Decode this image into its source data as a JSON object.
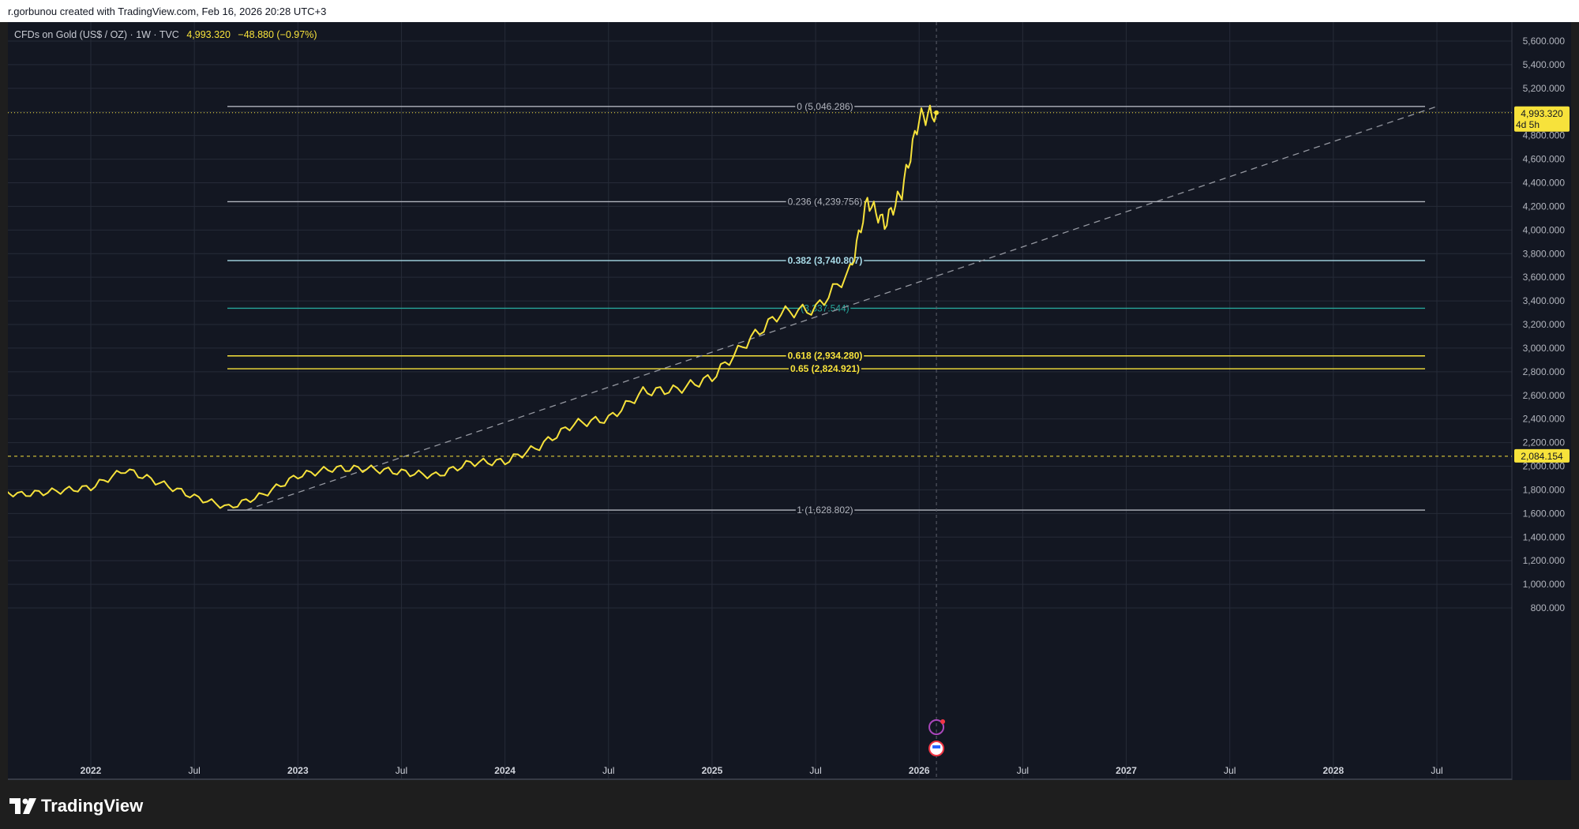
{
  "header": {
    "attribution": "r.gorbunou created with TradingView.com, Feb 16, 2026 20:28 UTC+3"
  },
  "legend": {
    "symbol": "CFDs on Gold (US$ / OZ) · 1W · TVC",
    "price": "4,993.320",
    "change": "−48.880 (−0.97%)"
  },
  "price_badges": {
    "current": "4,993.320",
    "countdown": "4d 5h",
    "line_level": "2,084.154"
  },
  "footer": {
    "logo": "TradingView"
  },
  "colors": {
    "price_line": "#f7e23b",
    "background": "#131722",
    "badge": "#f7e23b",
    "fib_white": "#b2b5be",
    "fib_cyan": "#a8dbe8",
    "fib_teal": "#26a69a",
    "fib_yellow": "#f7e23b"
  },
  "chart_data": {
    "type": "line",
    "ylim": [
      800,
      5600
    ],
    "yticks": [
      "5,600.000",
      "5,400.000",
      "5,200.000",
      "5,000.000",
      "4,800.000",
      "4,600.000",
      "4,400.000",
      "4,200.000",
      "4,000.000",
      "3,800.000",
      "3,600.000",
      "3,400.000",
      "3,200.000",
      "3,000.000",
      "2,800.000",
      "2,600.000",
      "2,400.000",
      "2,200.000",
      "2,000.000",
      "1,800.000",
      "1,600.000",
      "1,400.000",
      "1,200.000",
      "1,000.000",
      "800.000"
    ],
    "xticks": [
      "2022",
      "Jul",
      "2023",
      "Jul",
      "2024",
      "Jul",
      "2025",
      "Jul",
      "2026",
      "Jul",
      "2027",
      "Jul",
      "2028",
      "Jul"
    ],
    "series": [
      {
        "x": [
          "2021-05",
          "2021-07",
          "2021-09",
          "2021-11",
          "2022-01",
          "2022-03",
          "2022-05",
          "2022-07",
          "2022-09",
          "2022-11",
          "2023-01",
          "2023-03",
          "2023-05",
          "2023-07",
          "2023-09",
          "2023-11",
          "2024-01",
          "2024-03",
          "2024-05",
          "2024-07",
          "2024-09",
          "2024-11",
          "2025-01",
          "2025-03",
          "2025-05",
          "2025-07",
          "2025-09",
          "2025-10",
          "2025-11",
          "2025-12",
          "2026-01",
          "2026-02"
        ],
        "values": [
          1790,
          1800,
          1760,
          1790,
          1820,
          1970,
          1860,
          1740,
          1650,
          1760,
          1920,
          1980,
          1980,
          1950,
          1920,
          2030,
          2040,
          2170,
          2360,
          2400,
          2630,
          2650,
          2750,
          3050,
          3300,
          3330,
          3650,
          4250,
          4050,
          4330,
          4950,
          4993
        ]
      }
    ],
    "fib_levels": [
      {
        "ratio": 0,
        "price": 5046.286,
        "label": "0 (5,046.286)"
      },
      {
        "ratio": 0.236,
        "price": 4239.756,
        "label": "0.236 (4,239.756)"
      },
      {
        "ratio": 0.382,
        "price": 3740.807,
        "label": "0.382 (3,740.807)"
      },
      {
        "ratio": 0.5,
        "price": 3337.544,
        "label": "(3,337.544)"
      },
      {
        "ratio": 0.618,
        "price": 2934.28,
        "label": "0.618 (2,934.280)"
      },
      {
        "ratio": 0.65,
        "price": 2824.921,
        "label": "0.65 (2,824.921)"
      },
      {
        "ratio": 1,
        "price": 1628.802,
        "label": "1 (1,628.802)"
      }
    ],
    "horizontal_line": 2084.154,
    "trendline": {
      "from": [
        "2022-10",
        1628.802
      ],
      "to": [
        "2028-07",
        5046.286
      ]
    },
    "grid": true
  }
}
